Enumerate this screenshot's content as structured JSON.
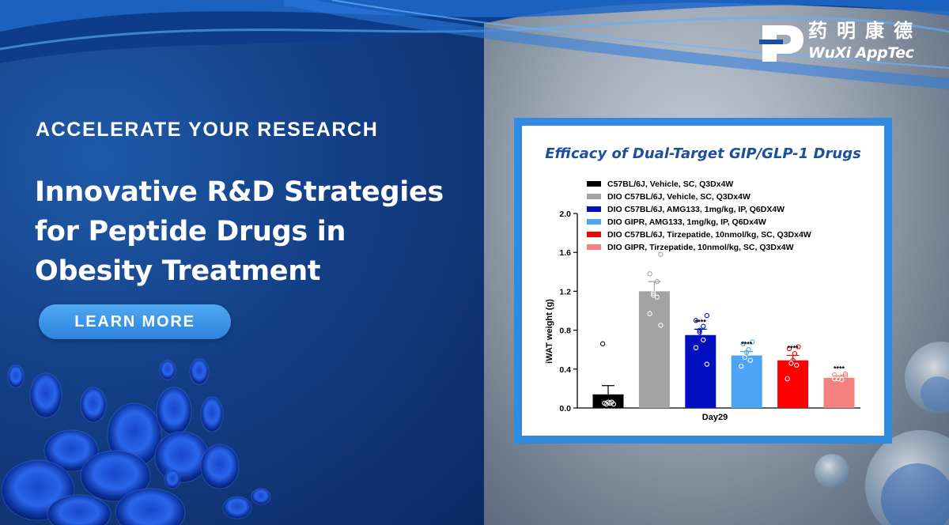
{
  "brand": {
    "cn": "药明康德",
    "en": "WuXi AppTec"
  },
  "hero": {
    "eyebrow": "ACCELERATE YOUR RESEARCH",
    "headline_lines": [
      "Innovative R&D Strategies",
      "for Peptide Drugs in",
      "Obesity Treatment"
    ],
    "cta": "LEARN MORE"
  },
  "colors": {
    "accent": "#2f8ae0",
    "title": "#1c4fa0",
    "button": "#3a95e8"
  },
  "chart_data": {
    "type": "bar",
    "title": "Efficacy of Dual-Target GIP/GLP-1 Drugs",
    "xlabel": "Day29",
    "ylabel": "iWAT weight (g)",
    "ylim": [
      0,
      2.0
    ],
    "yticks": [
      "0.0",
      "0.4",
      "0.8",
      "1.2",
      "1.6",
      "2.0"
    ],
    "legend_position": "top-left",
    "significance_label": "****",
    "series": [
      {
        "name": "C57BL/6J, Vehicle, SC, Q3Dx4W",
        "color": "#000000",
        "value": 0.14,
        "error": 0.09,
        "points": [
          0.04,
          0.05,
          0.05,
          0.06,
          0.04,
          0.06,
          0.66
        ],
        "significance": ""
      },
      {
        "name": "DIO C57BL/6J, Vehicle, SC, Q3Dx4W",
        "color": "#a3a3a3",
        "value": 1.2,
        "error": 0.1,
        "points": [
          1.58,
          1.38,
          1.3,
          1.16,
          1.18,
          1.14,
          0.97,
          0.85
        ],
        "significance": ""
      },
      {
        "name": "DIO C57BL/6J, AMG133, 1mg/kg, IP, Q6DX4W",
        "color": "#0010c0",
        "value": 0.75,
        "error": 0.06,
        "points": [
          0.95,
          0.9,
          0.84,
          0.8,
          0.78,
          0.7,
          0.62,
          0.45
        ],
        "significance": "****"
      },
      {
        "name": "DIO GIPR, AMG133, 1mg/kg, IP, Q6Dx4W",
        "color": "#4da3f5",
        "value": 0.54,
        "error": 0.04,
        "points": [
          0.68,
          0.66,
          0.6,
          0.57,
          0.52,
          0.49,
          0.43
        ],
        "significance": "****"
      },
      {
        "name": "DIO C57BL/6J, Tirzepatide, 10nmol/kg, SC, Q3Dx4W",
        "color": "#ff0000",
        "value": 0.49,
        "error": 0.05,
        "points": [
          0.63,
          0.61,
          0.56,
          0.49,
          0.46,
          0.44,
          0.3
        ],
        "significance": "****"
      },
      {
        "name": "DIO GIPR, Tirzepatide, 10nmol/kg, SC, Q3Dx4W",
        "color": "#f58080",
        "value": 0.31,
        "error": 0.02,
        "points": [
          0.35,
          0.34,
          0.32,
          0.31,
          0.3,
          0.29,
          0.3,
          0.33
        ],
        "significance": "****"
      }
    ]
  }
}
